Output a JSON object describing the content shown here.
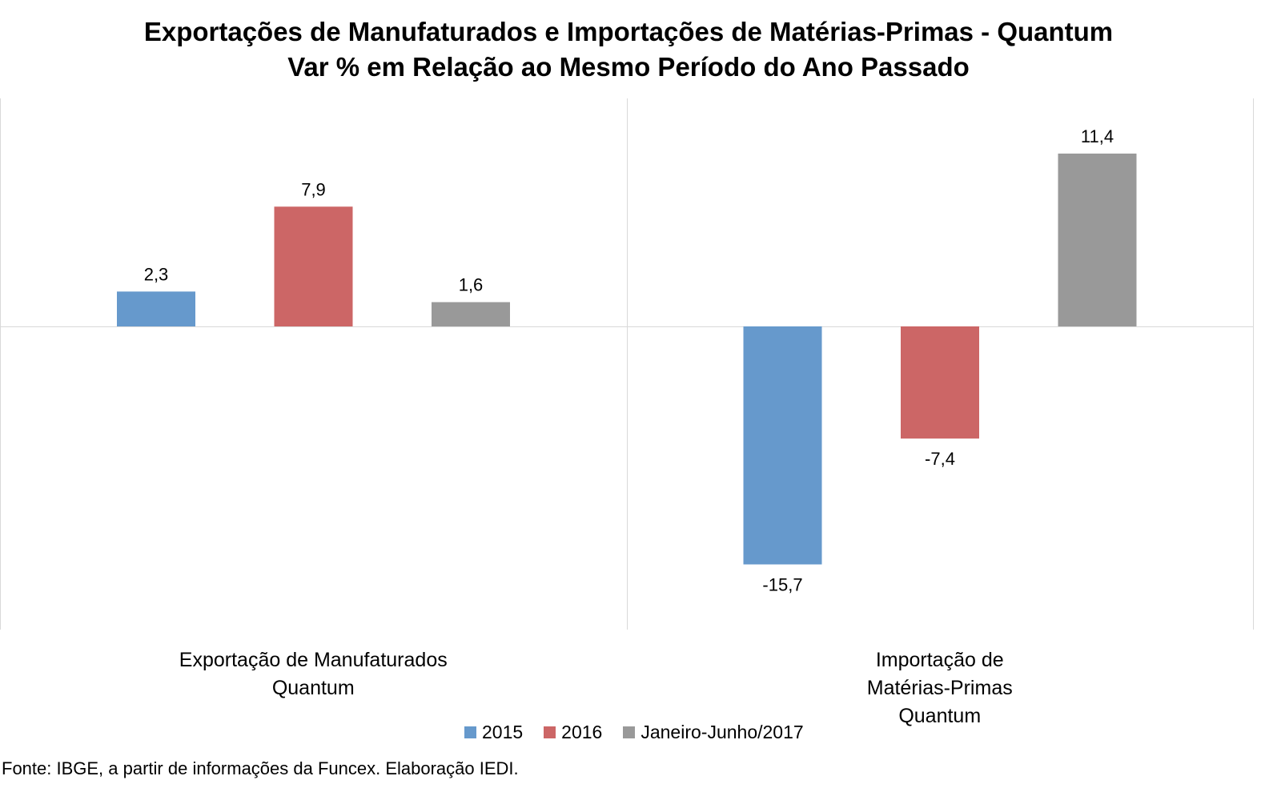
{
  "chart_data": {
    "type": "bar",
    "title_lines": [
      "Exportações de Manufaturados e Importações de Matérias-Primas - Quantum",
      "Var % em Relação ao Mesmo Período do Ano Passado"
    ],
    "categories": [
      [
        "Exportação de Manufaturados",
        "Quantum"
      ],
      [
        "Importação de",
        "Matérias-Primas",
        "Quantum"
      ]
    ],
    "series": [
      {
        "name": "2015",
        "color": "#6699cc",
        "values": [
          2.3,
          -15.7
        ],
        "labels": [
          "2,3",
          "-15,7"
        ]
      },
      {
        "name": "2016",
        "color": "#cc6666",
        "values": [
          7.9,
          -7.4
        ],
        "labels": [
          "7,9",
          "-7,4"
        ]
      },
      {
        "name": "Janeiro-Junho/2017",
        "color": "#999999",
        "values": [
          1.6,
          11.4
        ],
        "labels": [
          "1,6",
          "11,4"
        ]
      }
    ],
    "ylim": [
      -20,
      15
    ],
    "grid": false,
    "legend_position": "bottom"
  },
  "source": "Fonte: IBGE, a partir de  informações da Funcex. Elaboração IEDI."
}
